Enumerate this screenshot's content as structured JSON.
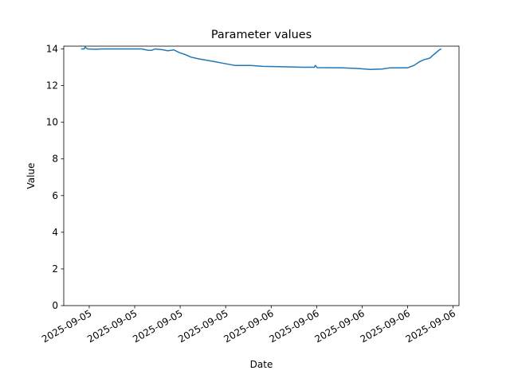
{
  "chart_data": {
    "type": "line",
    "title": "Parameter values",
    "x_label": "Date",
    "y_label": "Value",
    "x": [
      -0.18,
      -0.11,
      -0.09,
      -0.04,
      0.14,
      0.32,
      0.67,
      1.16,
      1.28,
      1.37,
      1.45,
      1.63,
      1.72,
      1.8,
      1.86,
      1.98,
      2.1,
      2.24,
      2.42,
      2.59,
      2.77,
      2.94,
      3.2,
      3.55,
      3.82,
      4.17,
      4.69,
      4.95,
      4.97,
      5.01,
      5.57,
      5.92,
      6.18,
      6.44,
      6.62,
      6.88,
      7.0,
      7.14,
      7.26,
      7.37,
      7.49,
      7.58,
      7.7,
      7.74
    ],
    "series": [
      {
        "color": "#1f77b4",
        "values": [
          14.0,
          14.0,
          14.1,
          14.0,
          13.98,
          14.0,
          14.0,
          14.0,
          13.93,
          13.92,
          14.0,
          13.95,
          13.9,
          13.92,
          13.95,
          13.8,
          13.7,
          13.55,
          13.45,
          13.38,
          13.3,
          13.22,
          13.1,
          13.1,
          13.05,
          13.03,
          13.0,
          13.0,
          13.1,
          12.98,
          12.97,
          12.93,
          12.88,
          12.9,
          12.97,
          12.97,
          12.97,
          13.1,
          13.3,
          13.42,
          13.5,
          13.7,
          13.95,
          14.0
        ]
      }
    ],
    "xlim": [
      -0.56,
      8.13
    ],
    "xticks": [
      {
        "value": 0,
        "label": "2025-09-05"
      },
      {
        "value": 1,
        "label": "2025-09-05"
      },
      {
        "value": 2,
        "label": "2025-09-05"
      },
      {
        "value": 3,
        "label": "2025-09-05"
      },
      {
        "value": 4,
        "label": "2025-09-06"
      },
      {
        "value": 5,
        "label": "2025-09-06"
      },
      {
        "value": 6,
        "label": "2025-09-06"
      },
      {
        "value": 7,
        "label": "2025-09-06"
      },
      {
        "value": 8,
        "label": "2025-09-06"
      }
    ],
    "ylim": [
      0,
      14.15
    ],
    "yticks": [
      0,
      2,
      4,
      6,
      8,
      10,
      12,
      14
    ]
  }
}
